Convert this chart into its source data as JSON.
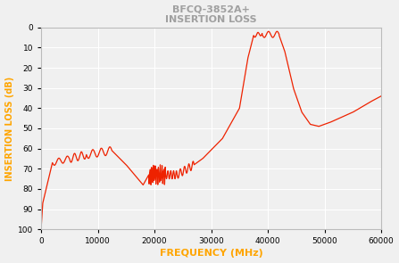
{
  "title_line1": "BFCQ-3852A+",
  "title_line2": "INSERTION LOSS",
  "xlabel": "FREQUENCY (MHz)",
  "ylabel": "INSERTION LOSS (dB)",
  "title_color": "#a0a0a0",
  "label_color": "#FFA500",
  "line_color": "#EE2200",
  "background_color": "#f0f0f0",
  "grid_color": "#ffffff",
  "xlim": [
    0,
    60000
  ],
  "ylim": [
    100,
    0
  ],
  "xticks": [
    0,
    10000,
    20000,
    30000,
    40000,
    50000,
    60000
  ],
  "yticks": [
    0,
    10,
    20,
    30,
    40,
    50,
    60,
    70,
    80,
    90,
    100
  ],
  "figsize": [
    4.47,
    2.95
  ],
  "dpi": 100
}
